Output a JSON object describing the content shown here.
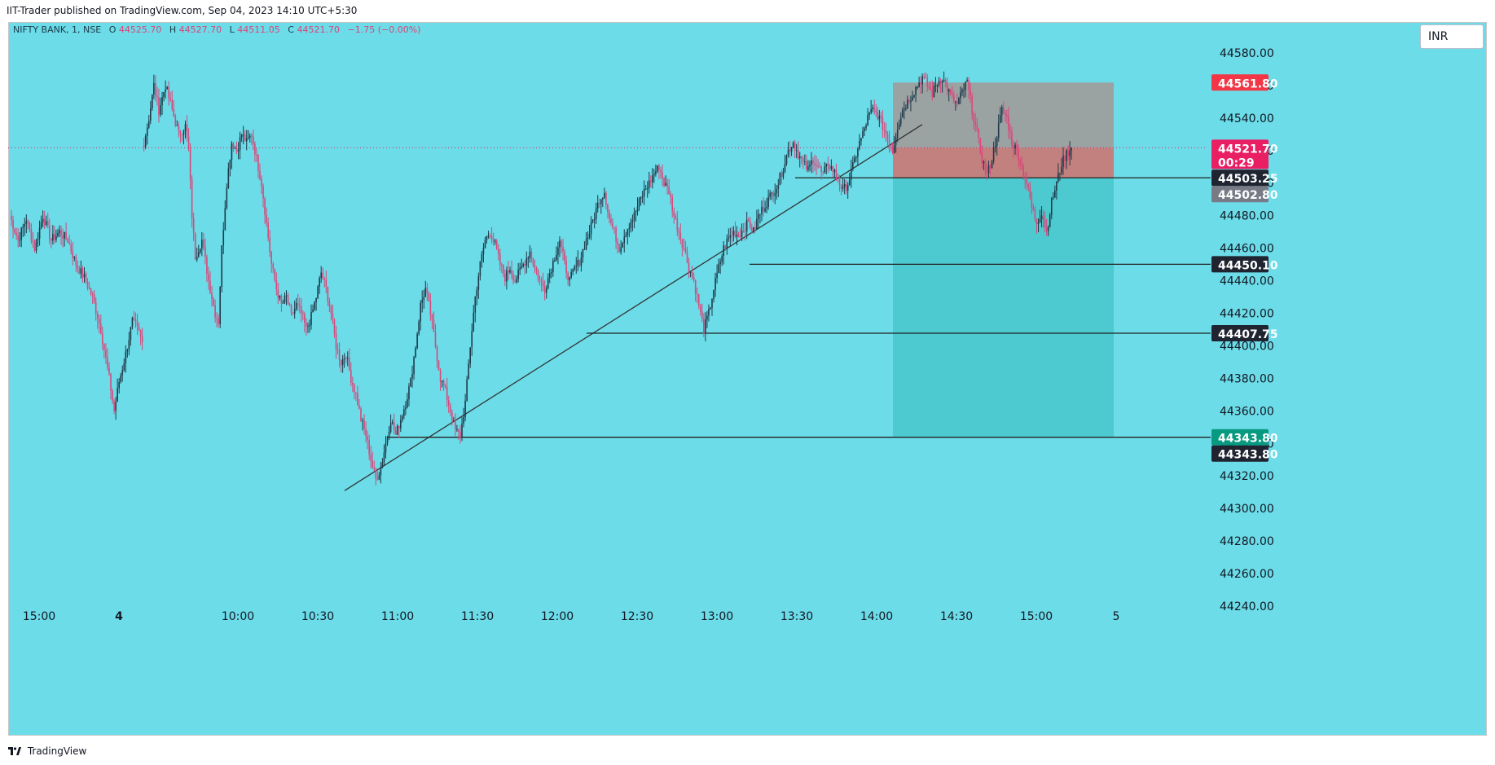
{
  "header": {
    "text": "IIT-Trader published on TradingView.com, Sep 04, 2023 14:10 UTC+5:30"
  },
  "footer": {
    "brand": "TradingView"
  },
  "legend": {
    "symbol": "NIFTY BANK, 1, NSE",
    "o_label": "O",
    "o": "44525.70",
    "h_label": "H",
    "h": "44527.70",
    "l_label": "L",
    "l": "44511.05",
    "c_label": "C",
    "c": "44521.70",
    "change": "−1.75 (−0.00%)"
  },
  "currency": "INR",
  "colors": {
    "background": "#6bdce8",
    "up": "#1e3a4a",
    "down": "#d9487a",
    "stop_zone": "#9e9e9e",
    "entry_zone": "#c77b78",
    "target_zone": "#4ac8cc",
    "last_price_tag": "#e91e63",
    "stop_tag": "#f23645",
    "target_tag": "#089981",
    "level_tag": "#1f2430",
    "gray_tag": "#787b86"
  },
  "chart_data": {
    "type": "candlestick",
    "y_ticks": [
      44240,
      44260,
      44280,
      44300,
      44320,
      44340,
      44360,
      44380,
      44400,
      44420,
      44440,
      44460,
      44480,
      44500,
      44520,
      44540,
      44560,
      44580
    ],
    "y_tick_labels": [
      "44240.00",
      "44260.00",
      "44280.00",
      "44300.00",
      "44320.00",
      "44340.00",
      "44360.00",
      "44380.00",
      "44400.00",
      "44420.00",
      "44440.00",
      "44460.00",
      "44480.00",
      "44500.00",
      "44520.00",
      "44540.00",
      "44560.00",
      "44580.00"
    ],
    "x_ticks": [
      "15:00",
      "4",
      "10:00",
      "10:30",
      "11:00",
      "11:30",
      "12:00",
      "12:30",
      "13:00",
      "13:30",
      "14:00",
      "14:30",
      "15:00",
      "5"
    ],
    "x_tick_bold": [
      false,
      true,
      false,
      false,
      false,
      false,
      false,
      false,
      false,
      false,
      false,
      false,
      false,
      false
    ],
    "ylim": [
      44230,
      44595
    ],
    "price_path": [
      [
        0,
        44480
      ],
      [
        5,
        44465
      ],
      [
        10,
        44478
      ],
      [
        15,
        44460
      ],
      [
        20,
        44480
      ],
      [
        25,
        44465
      ],
      [
        30,
        44470
      ],
      [
        35,
        44465
      ],
      [
        40,
        44450
      ],
      [
        45,
        44442
      ],
      [
        50,
        44430
      ],
      [
        55,
        44410
      ],
      [
        60,
        44380
      ],
      [
        63,
        44360
      ],
      [
        66,
        44378
      ],
      [
        70,
        44395
      ],
      [
        74,
        44415
      ],
      [
        78,
        44408
      ],
      [
        80,
        44402
      ],
      [
        81,
        44525
      ],
      [
        84,
        44540
      ],
      [
        87,
        44560
      ],
      [
        90,
        44545
      ],
      [
        94,
        44560
      ],
      [
        98,
        44545
      ],
      [
        102,
        44530
      ],
      [
        106,
        44535
      ],
      [
        108,
        44520
      ],
      [
        110,
        44480
      ],
      [
        112,
        44455
      ],
      [
        116,
        44465
      ],
      [
        120,
        44440
      ],
      [
        124,
        44420
      ],
      [
        126,
        44415
      ],
      [
        128,
        44460
      ],
      [
        131,
        44500
      ],
      [
        134,
        44525
      ],
      [
        137,
        44520
      ],
      [
        140,
        44530
      ],
      [
        143,
        44525
      ],
      [
        146,
        44530
      ],
      [
        149,
        44515
      ],
      [
        152,
        44500
      ],
      [
        155,
        44475
      ],
      [
        158,
        44450
      ],
      [
        161,
        44435
      ],
      [
        164,
        44425
      ],
      [
        167,
        44430
      ],
      [
        170,
        44418
      ],
      [
        173,
        44425
      ],
      [
        176,
        44420
      ],
      [
        179,
        44410
      ],
      [
        182,
        44418
      ],
      [
        185,
        44430
      ],
      [
        188,
        44445
      ],
      [
        191,
        44435
      ],
      [
        194,
        44420
      ],
      [
        197,
        44400
      ],
      [
        200,
        44390
      ],
      [
        203,
        44395
      ],
      [
        206,
        44380
      ],
      [
        209,
        44370
      ],
      [
        212,
        44355
      ],
      [
        215,
        44345
      ],
      [
        218,
        44330
      ],
      [
        221,
        44318
      ],
      [
        224,
        44325
      ],
      [
        227,
        44340
      ],
      [
        230,
        44355
      ],
      [
        233,
        44345
      ],
      [
        236,
        44355
      ],
      [
        239,
        44365
      ],
      [
        242,
        44378
      ],
      [
        245,
        44400
      ],
      [
        248,
        44425
      ],
      [
        251,
        44435
      ],
      [
        254,
        44420
      ],
      [
        257,
        44400
      ],
      [
        260,
        44380
      ],
      [
        263,
        44372
      ],
      [
        266,
        44360
      ],
      [
        269,
        44348
      ],
      [
        272,
        44345
      ],
      [
        275,
        44365
      ],
      [
        278,
        44400
      ],
      [
        281,
        44430
      ],
      [
        284,
        44450
      ],
      [
        287,
        44465
      ],
      [
        290,
        44470
      ],
      [
        293,
        44462
      ],
      [
        296,
        44450
      ],
      [
        299,
        44442
      ],
      [
        302,
        44448
      ],
      [
        305,
        44440
      ],
      [
        308,
        44446
      ],
      [
        311,
        44452
      ],
      [
        314,
        44458
      ],
      [
        317,
        44448
      ],
      [
        320,
        44440
      ],
      [
        323,
        44435
      ],
      [
        326,
        44445
      ],
      [
        329,
        44455
      ],
      [
        332,
        44465
      ],
      [
        335,
        44450
      ],
      [
        338,
        44440
      ],
      [
        341,
        44447
      ],
      [
        344,
        44452
      ],
      [
        347,
        44462
      ],
      [
        350,
        44470
      ],
      [
        353,
        44480
      ],
      [
        356,
        44490
      ],
      [
        359,
        44495
      ],
      [
        362,
        44478
      ],
      [
        365,
        44470
      ],
      [
        368,
        44460
      ],
      [
        371,
        44468
      ],
      [
        374,
        44475
      ],
      [
        377,
        44480
      ],
      [
        380,
        44488
      ],
      [
        383,
        44495
      ],
      [
        386,
        44500
      ],
      [
        389,
        44506
      ],
      [
        392,
        44510
      ],
      [
        395,
        44500
      ],
      [
        398,
        44495
      ],
      [
        401,
        44480
      ],
      [
        404,
        44470
      ],
      [
        407,
        44460
      ],
      [
        410,
        44448
      ],
      [
        413,
        44440
      ],
      [
        416,
        44425
      ],
      [
        419,
        44410
      ],
      [
        422,
        44420
      ],
      [
        425,
        44435
      ],
      [
        428,
        44448
      ],
      [
        431,
        44460
      ],
      [
        434,
        44466
      ],
      [
        437,
        44470
      ],
      [
        440,
        44468
      ],
      [
        443,
        44472
      ],
      [
        446,
        44476
      ],
      [
        449,
        44470
      ],
      [
        452,
        44480
      ],
      [
        455,
        44485
      ],
      [
        458,
        44490
      ],
      [
        461,
        44495
      ],
      [
        464,
        44500
      ],
      [
        467,
        44510
      ],
      [
        470,
        44520
      ],
      [
        473,
        44525
      ],
      [
        476,
        44518
      ],
      [
        479,
        44512
      ],
      [
        482,
        44508
      ],
      [
        485,
        44515
      ],
      [
        488,
        44510
      ],
      [
        491,
        44505
      ],
      [
        494,
        44512
      ],
      [
        497,
        44508
      ],
      [
        500,
        44503
      ],
      [
        503,
        44495
      ],
      [
        506,
        44500
      ],
      [
        509,
        44510
      ],
      [
        512,
        44522
      ],
      [
        515,
        44530
      ],
      [
        518,
        44540
      ],
      [
        521,
        44545
      ],
      [
        524,
        44542
      ],
      [
        527,
        44535
      ],
      [
        530,
        44528
      ],
      [
        533,
        44520
      ],
      [
        536,
        44535
      ],
      [
        539,
        44545
      ],
      [
        542,
        44550
      ],
      [
        545,
        44555
      ],
      [
        548,
        44560
      ],
      [
        551,
        44565
      ],
      [
        554,
        44560
      ],
      [
        557,
        44555
      ],
      [
        560,
        44562
      ],
      [
        563,
        44565
      ],
      [
        566,
        44558
      ],
      [
        569,
        44552
      ],
      [
        572,
        44548
      ],
      [
        575,
        44556
      ],
      [
        578,
        44562
      ],
      [
        581,
        44545
      ],
      [
        584,
        44530
      ],
      [
        587,
        44515
      ],
      [
        590,
        44505
      ],
      [
        593,
        44515
      ],
      [
        596,
        44530
      ],
      [
        599,
        44545
      ],
      [
        602,
        44540
      ],
      [
        605,
        44525
      ],
      [
        608,
        44520
      ],
      [
        611,
        44510
      ],
      [
        614,
        44500
      ],
      [
        617,
        44485
      ],
      [
        620,
        44476
      ],
      [
        623,
        44482
      ],
      [
        626,
        44470
      ],
      [
        629,
        44488
      ],
      [
        632,
        44500
      ],
      [
        635,
        44512
      ],
      [
        638,
        44518
      ],
      [
        641,
        44521.7
      ]
    ]
  },
  "annotations": {
    "levels": [
      "44503.25",
      "44450.10",
      "44407.75",
      "44343.80"
    ]
  },
  "price_tags": {
    "stop": "44561.80",
    "last": "44521.70",
    "countdown": "00:29",
    "entry": "44503.25",
    "gray": "44502.80",
    "level1": "44450.10",
    "level2": "44407.75",
    "target": "44343.80",
    "target_close": "44343.80"
  }
}
